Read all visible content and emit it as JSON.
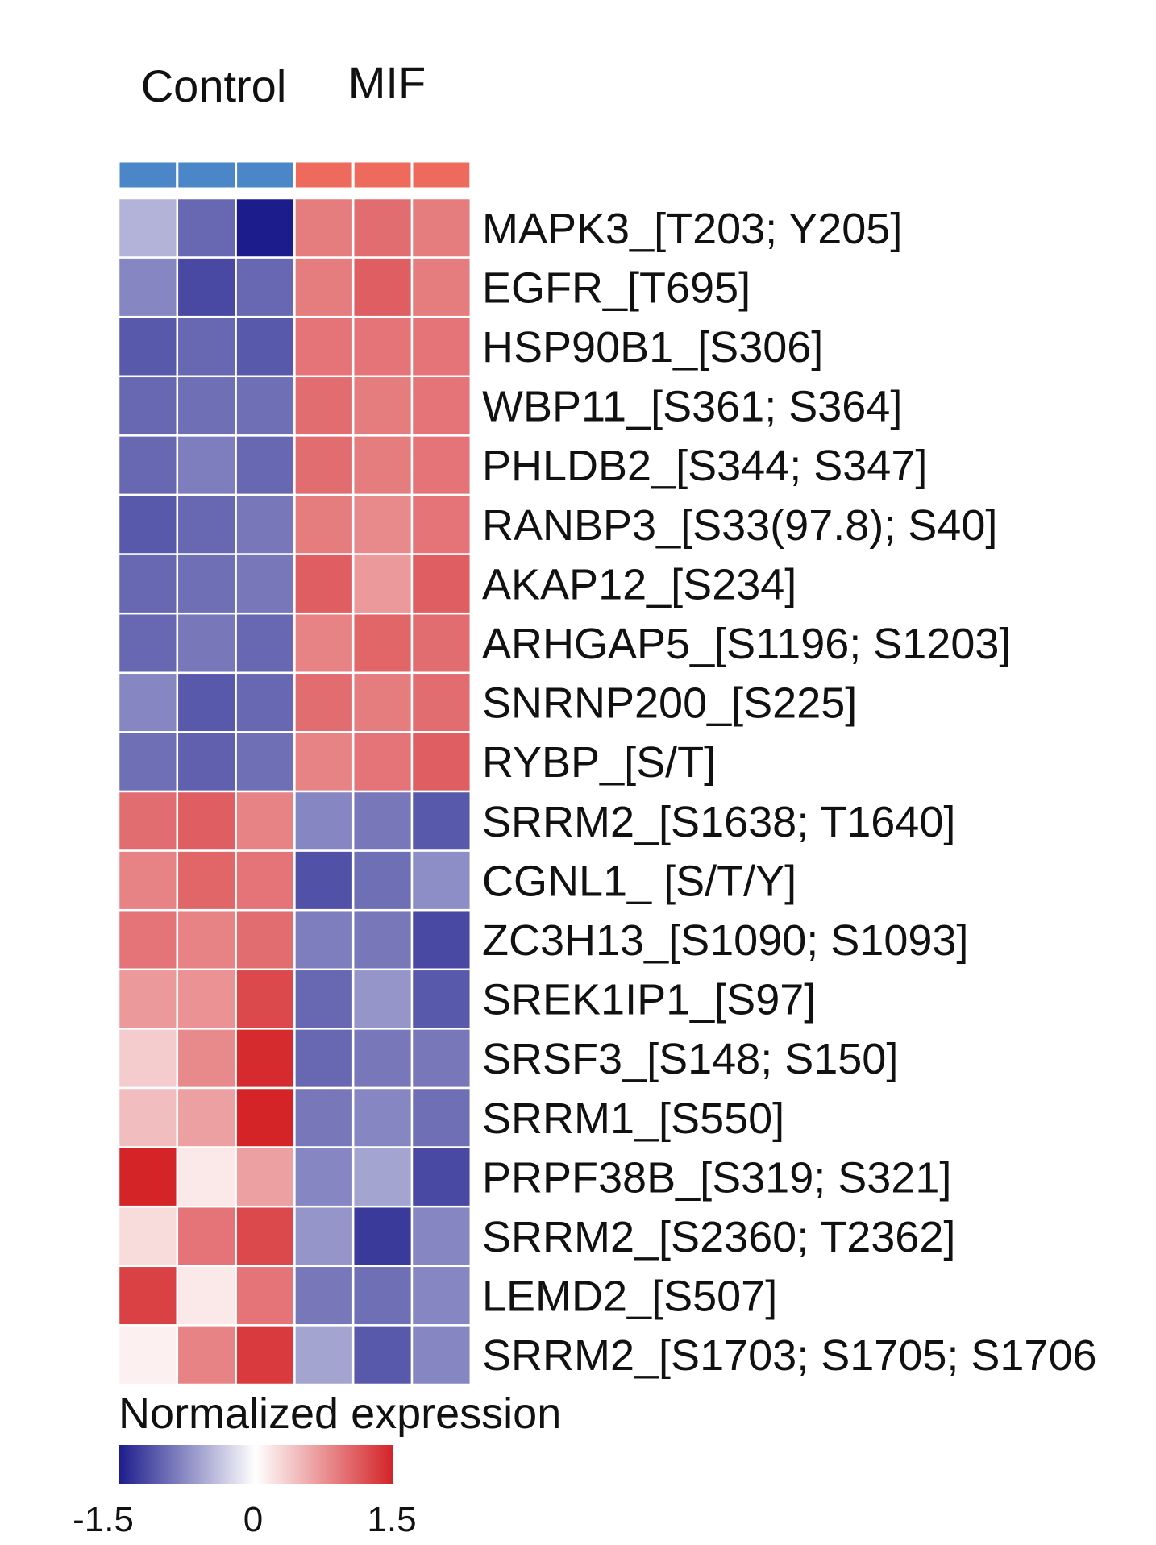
{
  "chart_data": {
    "type": "heatmap",
    "column_groups": [
      {
        "label": "Control",
        "columns": 3,
        "color": "#4a86c8"
      },
      {
        "label": "MIF",
        "columns": 3,
        "color": "#ee6a5c"
      }
    ],
    "rows": [
      "MAPK3_[T203; Y205]",
      "EGFR_[T695]",
      "HSP90B1_[S306]",
      "WBP11_[S361; S364]",
      "PHLDB2_[S344; S347]",
      "RANBP3_[S33(97.8); S40]",
      "AKAP12_[S234]",
      "ARHGAP5_[S1196; S1203]",
      "SNRNP200_[S225]",
      "RYBP_[S/T]",
      "SRRM2_[S1638; T1640]",
      "CGNL1_ [S/T/Y]",
      "ZC3H13_[S1090; S1093]",
      "SREK1IP1_[S97]",
      "SRSF3_[S148; S150]",
      "SRRM1_[S550]",
      "PRPF38B_[S319; S321]",
      "SRRM2_[S2360; T2362]",
      "LEMD2_[S507]",
      "SRRM2_[S1703; S1705; S1706"
    ],
    "values": [
      [
        -0.5,
        -1.0,
        -1.5,
        0.9,
        1.0,
        0.9
      ],
      [
        -0.8,
        -1.2,
        -1.0,
        0.9,
        1.1,
        0.9
      ],
      [
        -1.1,
        -1.0,
        -1.1,
        0.95,
        0.95,
        0.95
      ],
      [
        -1.0,
        -0.95,
        -0.95,
        1.0,
        0.9,
        0.95
      ],
      [
        -1.0,
        -0.85,
        -1.0,
        1.0,
        0.9,
        0.95
      ],
      [
        -1.1,
        -1.0,
        -0.9,
        0.9,
        0.8,
        0.95
      ],
      [
        -1.0,
        -0.95,
        -0.9,
        1.1,
        0.7,
        1.1
      ],
      [
        -1.0,
        -0.9,
        -1.0,
        0.85,
        1.05,
        1.0
      ],
      [
        -0.8,
        -1.1,
        -1.0,
        1.0,
        0.9,
        1.0
      ],
      [
        -0.95,
        -1.05,
        -0.95,
        0.85,
        0.95,
        1.1
      ],
      [
        1.0,
        1.1,
        0.85,
        -0.8,
        -0.9,
        -1.1
      ],
      [
        0.85,
        1.05,
        0.95,
        -1.15,
        -0.95,
        -0.75
      ],
      [
        0.95,
        0.85,
        1.0,
        -0.85,
        -0.9,
        -1.2
      ],
      [
        0.7,
        0.75,
        1.25,
        -1.0,
        -0.7,
        -1.1
      ],
      [
        0.35,
        0.8,
        1.45,
        -1.0,
        -0.9,
        -0.9
      ],
      [
        0.45,
        0.65,
        1.5,
        -0.9,
        -0.8,
        -0.95
      ],
      [
        1.5,
        0.15,
        0.65,
        -0.8,
        -0.6,
        -1.2
      ],
      [
        0.25,
        0.95,
        1.25,
        -0.7,
        -1.3,
        -0.8
      ],
      [
        1.3,
        0.15,
        0.95,
        -0.9,
        -0.95,
        -0.8
      ],
      [
        0.1,
        0.85,
        1.35,
        -0.6,
        -1.1,
        -0.8
      ]
    ],
    "colorbar": {
      "title": "Normalized expression",
      "min": -1.5,
      "max": 1.5,
      "ticks": [
        "-1.5",
        "0",
        "1.5"
      ],
      "colors": [
        "#1c1c8c",
        "#ffffff",
        "#d42428"
      ]
    }
  }
}
